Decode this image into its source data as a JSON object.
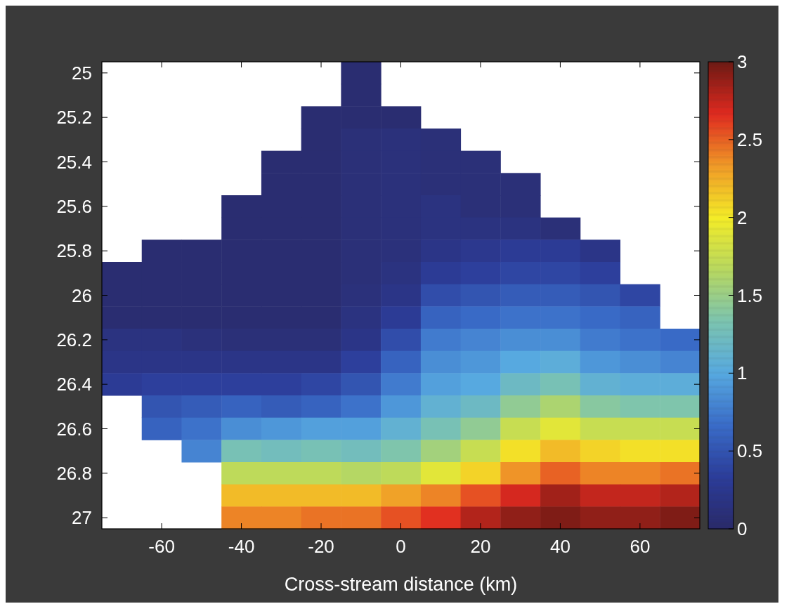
{
  "chart_data": {
    "type": "heatmap",
    "xlabel": "Cross-stream distance (km)",
    "categories": [
      null,
      "-60",
      null,
      "-40",
      null,
      "-20",
      null,
      "0",
      null,
      "20",
      null,
      "40",
      null,
      "60",
      null
    ],
    "y_categories": [
      "25",
      null,
      "25.2",
      null,
      "25.4",
      null,
      "25.6",
      null,
      "25.8",
      null,
      "26",
      null,
      "26.2",
      null,
      "26.4",
      null,
      "26.6",
      null,
      "26.8",
      null,
      "27"
    ],
    "clim": [
      0,
      3
    ],
    "cticks": [
      0,
      0.5,
      1,
      1.5,
      2,
      2.5,
      3
    ],
    "cells": [
      [
        null,
        null,
        null,
        null,
        null,
        null,
        0.05,
        null,
        null,
        null,
        null,
        null,
        null,
        null,
        null
      ],
      [
        null,
        null,
        null,
        null,
        null,
        null,
        0.05,
        null,
        null,
        null,
        null,
        null,
        null,
        null,
        null
      ],
      [
        null,
        null,
        null,
        null,
        null,
        0.05,
        0.05,
        0.05,
        null,
        null,
        null,
        null,
        null,
        null,
        null
      ],
      [
        null,
        null,
        null,
        null,
        null,
        0.05,
        0.1,
        0.12,
        0.1,
        null,
        null,
        null,
        null,
        null,
        null
      ],
      [
        null,
        null,
        null,
        null,
        0.05,
        0.05,
        0.1,
        0.12,
        0.1,
        0.1,
        null,
        null,
        null,
        null,
        null
      ],
      [
        null,
        null,
        null,
        null,
        0.05,
        0.05,
        0.1,
        0.12,
        0.1,
        0.1,
        0.1,
        null,
        null,
        null,
        null
      ],
      [
        null,
        null,
        null,
        0.05,
        0.05,
        0.05,
        0.1,
        0.12,
        0.15,
        0.1,
        0.1,
        null,
        null,
        null,
        null
      ],
      [
        null,
        null,
        null,
        0.05,
        0.05,
        0.05,
        0.1,
        0.12,
        0.15,
        0.15,
        0.15,
        0.1,
        null,
        null,
        null
      ],
      [
        null,
        0.05,
        0.05,
        0.05,
        0.05,
        0.05,
        0.1,
        0.12,
        0.2,
        0.25,
        0.3,
        0.3,
        0.2,
        null,
        null
      ],
      [
        0.05,
        0.05,
        0.05,
        0.05,
        0.05,
        0.05,
        0.1,
        0.15,
        0.3,
        0.35,
        0.4,
        0.4,
        0.35,
        null,
        null
      ],
      [
        0.05,
        0.05,
        0.05,
        0.05,
        0.05,
        0.05,
        0.12,
        0.2,
        0.45,
        0.5,
        0.55,
        0.55,
        0.5,
        0.4,
        null
      ],
      [
        0.05,
        0.05,
        0.05,
        0.05,
        0.05,
        0.05,
        0.15,
        0.3,
        0.6,
        0.65,
        0.7,
        0.7,
        0.65,
        0.6,
        null
      ],
      [
        0.15,
        0.15,
        0.12,
        0.1,
        0.1,
        0.1,
        0.2,
        0.45,
        0.75,
        0.8,
        0.85,
        0.85,
        0.75,
        0.7,
        0.65
      ],
      [
        0.2,
        0.2,
        0.2,
        0.2,
        0.2,
        0.2,
        0.35,
        0.6,
        0.85,
        0.9,
        1.0,
        1.05,
        0.9,
        0.85,
        0.8
      ],
      [
        0.3,
        0.35,
        0.35,
        0.35,
        0.35,
        0.4,
        0.5,
        0.75,
        0.95,
        1.0,
        1.2,
        1.3,
        1.1,
        1.05,
        1.05
      ],
      [
        null,
        0.5,
        0.55,
        0.6,
        0.55,
        0.6,
        0.7,
        0.9,
        1.1,
        1.2,
        1.45,
        1.6,
        1.4,
        1.35,
        1.35
      ],
      [
        null,
        0.6,
        0.7,
        0.85,
        0.9,
        0.95,
        0.95,
        1.1,
        1.3,
        1.45,
        1.75,
        1.9,
        1.75,
        1.75,
        1.75
      ],
      [
        null,
        null,
        0.8,
        1.3,
        1.25,
        1.3,
        1.25,
        1.35,
        1.55,
        1.75,
        2.05,
        2.2,
        2.1,
        2.05,
        2.05
      ],
      [
        null,
        null,
        null,
        1.7,
        1.7,
        1.7,
        1.65,
        1.7,
        1.9,
        2.1,
        2.35,
        2.5,
        2.4,
        2.4,
        2.45
      ],
      [
        null,
        null,
        null,
        2.2,
        2.2,
        2.2,
        2.2,
        2.3,
        2.4,
        2.55,
        2.7,
        2.85,
        2.75,
        2.75,
        2.8
      ],
      [
        null,
        null,
        null,
        2.4,
        2.4,
        2.45,
        2.45,
        2.55,
        2.65,
        2.8,
        2.9,
        2.95,
        2.9,
        2.9,
        2.95
      ]
    ]
  }
}
